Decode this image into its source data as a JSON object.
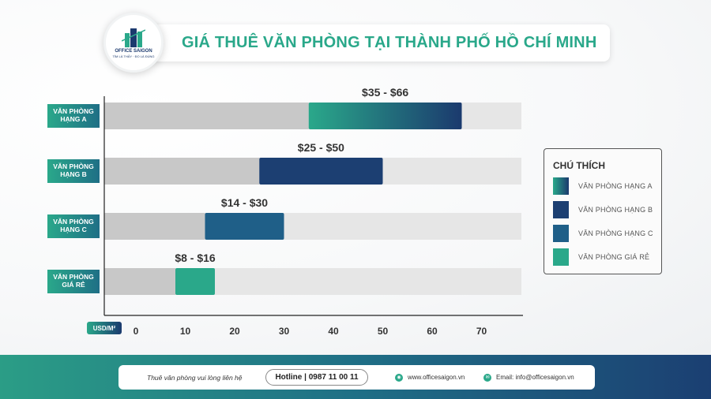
{
  "header": {
    "title": "GIÁ THUÊ VĂN PHÒNG TẠI THÀNH PHỐ HỒ CHÍ MINH",
    "logo_name": "OFFICE SAIGON",
    "logo_tagline": "TÌM LÀ THẤY · ĐO LÀ ĐÚNG"
  },
  "chart_data": {
    "type": "bar",
    "orientation": "horizontal-range",
    "title": "GIÁ THUÊ VĂN PHÒNG TẠI THÀNH PHỐ HỒ CHÍ MINH",
    "xlabel": "USD/M²",
    "ylabel": "",
    "xlim": [
      0,
      78
    ],
    "x_ticks": [
      0,
      10,
      20,
      30,
      40,
      50,
      60,
      70
    ],
    "grid": false,
    "legend_position": "right",
    "categories": [
      [
        "VĂN PHÒNG",
        "HẠNG A"
      ],
      [
        "VĂN PHÒNG",
        "HẠNG B"
      ],
      [
        "VĂN PHÒNG",
        "HẠNG C"
      ],
      [
        "VĂN PHÒNG",
        "GIÁ RẺ"
      ]
    ],
    "bars": [
      {
        "category": "VĂN PHÒNG HẠNG A",
        "min": 35,
        "max": 66,
        "label": "$35 - $66",
        "color_from": "#2aa88a",
        "color_to": "#1b3a6e"
      },
      {
        "category": "VĂN PHÒNG HẠNG B",
        "min": 25,
        "max": 50,
        "label": "$25 - $50",
        "color_from": "#1c3f72",
        "color_to": "#1c3f72"
      },
      {
        "category": "VĂN PHÒNG HẠNG C",
        "min": 14,
        "max": 30,
        "label": "$14 - $30",
        "color_from": "#1f5f88",
        "color_to": "#1f5f88"
      },
      {
        "category": "VĂN PHÒNG GIÁ RẺ",
        "min": 8,
        "max": 16,
        "label": "$8 - $16",
        "color_from": "#2aa88a",
        "color_to": "#2aa88a"
      }
    ]
  },
  "legend": {
    "title": "CHÚ THÍCH",
    "items": [
      {
        "label": "VĂN PHÒNG HẠNG A",
        "color_from": "#2aa88a",
        "color_to": "#1b3a6e"
      },
      {
        "label": "VĂN PHÒNG HẠNG B",
        "color_from": "#1c3f72",
        "color_to": "#1c3f72"
      },
      {
        "label": "VĂN PHÒNG HẠNG C",
        "color_from": "#1f5f88",
        "color_to": "#1f5f88"
      },
      {
        "label": "VĂN PHÒNG GIÁ RẺ",
        "color_from": "#2aa88a",
        "color_to": "#2aa88a"
      }
    ]
  },
  "footer": {
    "note": "Thuê văn phòng vui lòng liên hệ",
    "hotline": "Hotline | 0987 11 00 11",
    "website": "www.officesaigon.vn",
    "email": "Email: info@officesaigon.vn"
  },
  "colors": {
    "track": "#e6e6e6",
    "track_filled": "#c8c8c8",
    "accent_green": "#2aa88a",
    "navy": "#1b3a6e"
  }
}
